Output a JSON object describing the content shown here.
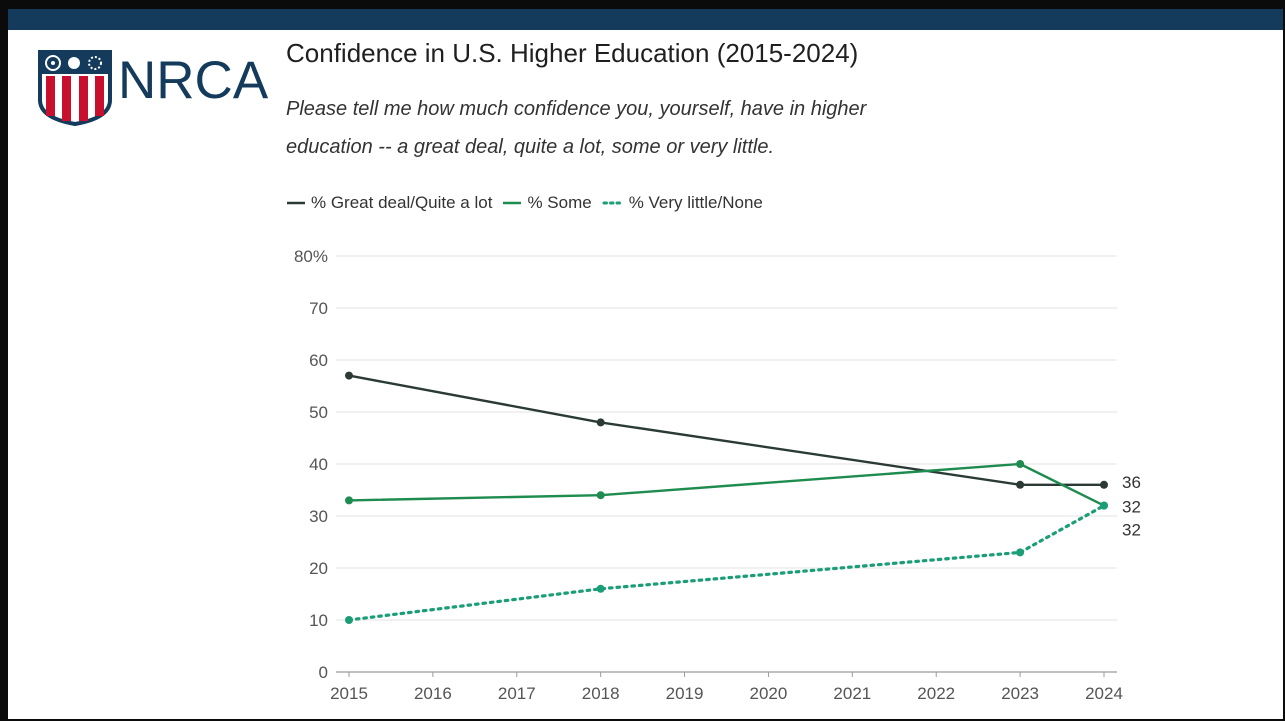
{
  "logo": {
    "text": "NRCA"
  },
  "colors": {
    "bar": "#143a5c",
    "great_deal": "#2b3a35",
    "some": "#1e8c4e",
    "very_little": "#1b9e77",
    "grid": "#e3e3e3",
    "logo_red": "#c8102e",
    "logo_blue": "#143a5c"
  },
  "chart_data": {
    "type": "line",
    "title": "Confidence in U.S. Higher Education (2015-2024)",
    "subtitle_lines": [
      "Please tell me how much confidence you, yourself, have in higher",
      "education -- a great deal, quite a lot, some or very little."
    ],
    "x_ticks": [
      "2015",
      "2016",
      "2017",
      "2018",
      "2019",
      "2020",
      "2021",
      "2022",
      "2023",
      "2024"
    ],
    "y_ticks": [
      "0",
      "10",
      "20",
      "30",
      "40",
      "50",
      "60",
      "70",
      "80%"
    ],
    "ylim": [
      0,
      80
    ],
    "xlim": [
      2015,
      2024
    ],
    "grid": true,
    "legend_position": "top-left",
    "series": [
      {
        "name": "% Great deal/Quite a lot",
        "x": [
          2015,
          2018,
          2023,
          2024
        ],
        "values": [
          57,
          48,
          36,
          36
        ],
        "style": "solid",
        "end_label": "36"
      },
      {
        "name": "% Some",
        "x": [
          2015,
          2018,
          2023,
          2024
        ],
        "values": [
          33,
          34,
          40,
          32
        ],
        "style": "solid",
        "end_label": "32"
      },
      {
        "name": "% Very little/None",
        "x": [
          2015,
          2018,
          2023,
          2024
        ],
        "values": [
          10,
          16,
          23,
          32
        ],
        "style": "dotted",
        "end_label": "32"
      }
    ]
  }
}
